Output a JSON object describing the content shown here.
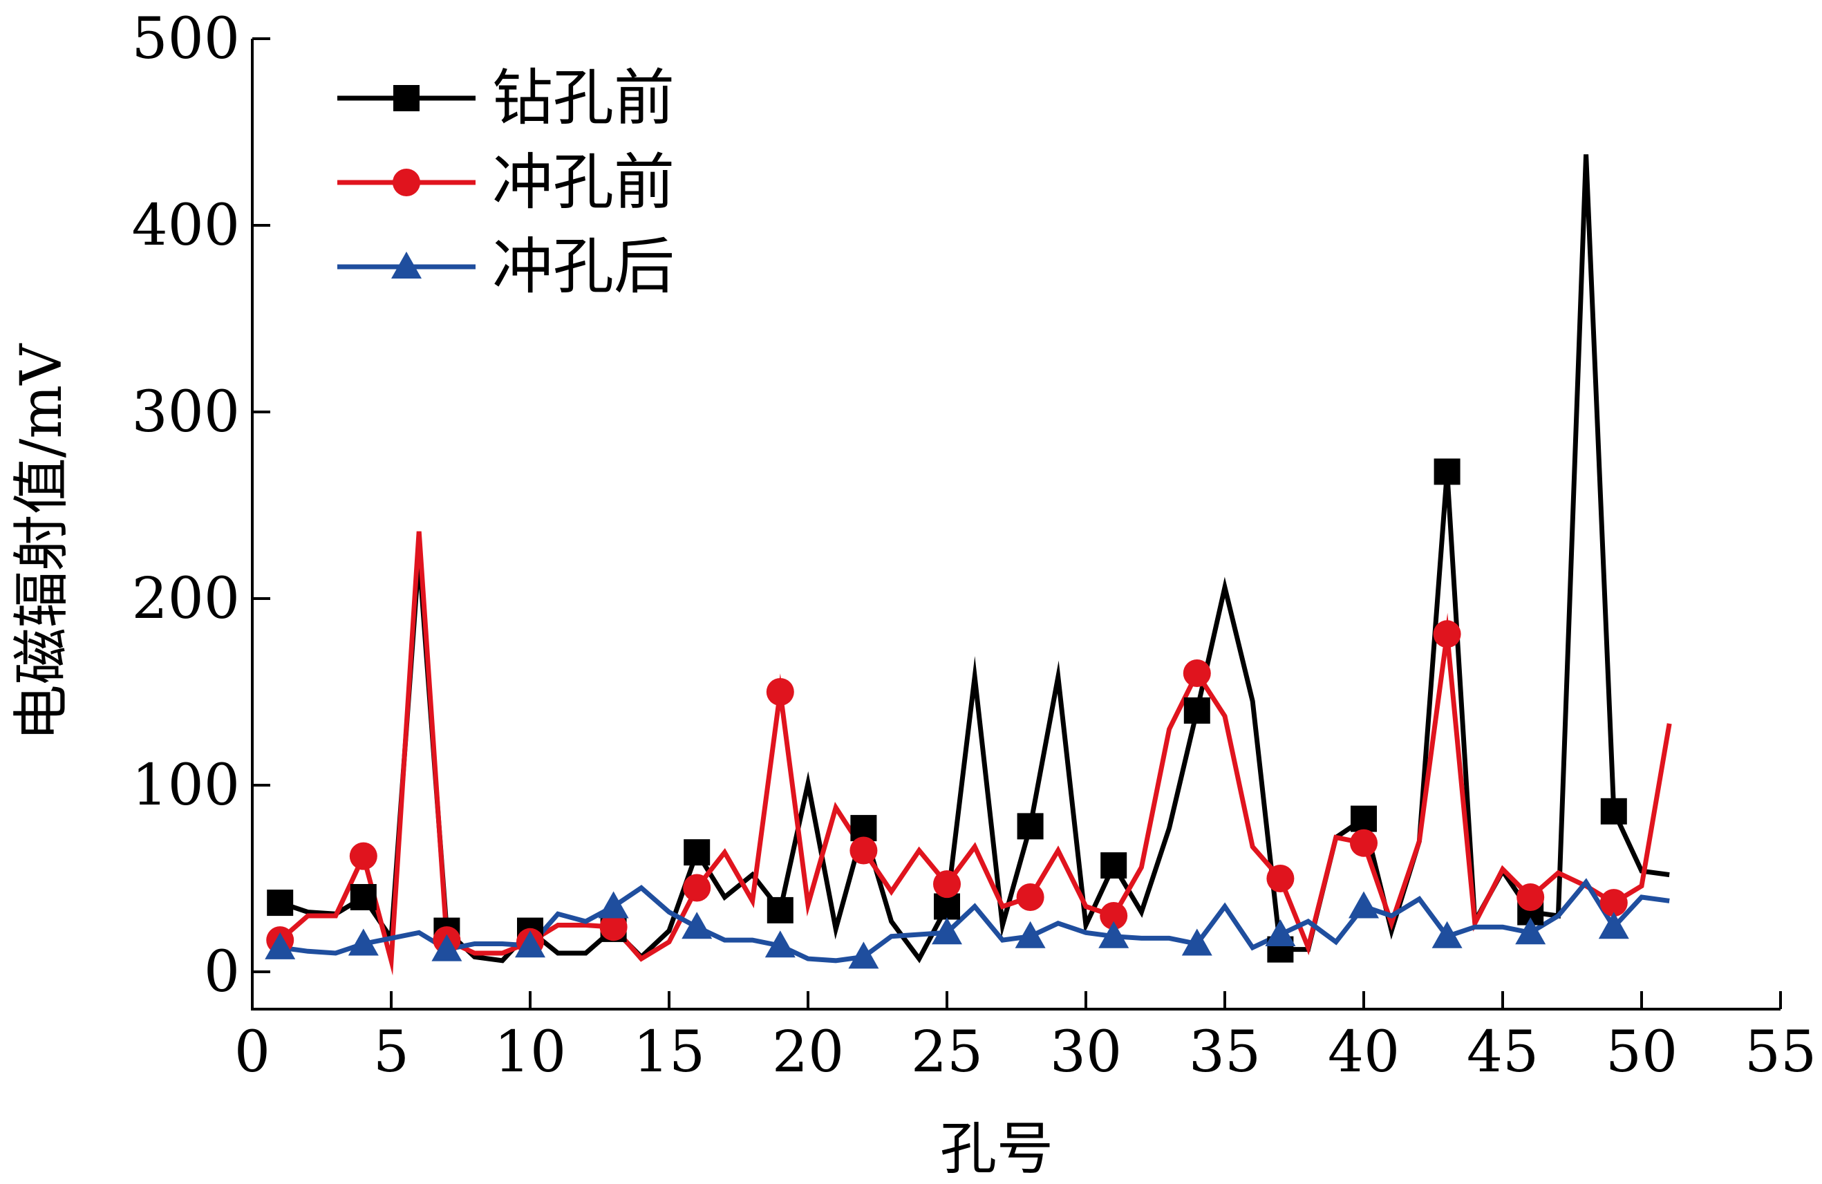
{
  "chart_data": {
    "type": "line",
    "xlabel": "孔号",
    "ylabel": "电磁辐射值/mV",
    "xlim": [
      0,
      55
    ],
    "ylim": [
      -20,
      500
    ],
    "x_ticks": [
      0,
      5,
      10,
      15,
      20,
      25,
      30,
      35,
      40,
      45,
      50,
      55
    ],
    "y_ticks": [
      0,
      100,
      200,
      300,
      400,
      500
    ],
    "x_tick_labels": [
      "0",
      "5",
      "10",
      "15",
      "20",
      "25",
      "30",
      "35",
      "40",
      "45",
      "50",
      "55"
    ],
    "y_tick_labels": [
      "0",
      "100",
      "200",
      "300",
      "400",
      "500"
    ],
    "grid": false,
    "legend_position": "top-left",
    "x": [
      1,
      2,
      3,
      4,
      5,
      6,
      7,
      8,
      9,
      10,
      11,
      12,
      13,
      14,
      15,
      16,
      17,
      18,
      19,
      20,
      21,
      22,
      23,
      24,
      25,
      26,
      27,
      28,
      29,
      30,
      31,
      32,
      33,
      34,
      35,
      36,
      37,
      38,
      39,
      40,
      41,
      42,
      43,
      44,
      45,
      46,
      47,
      48,
      49,
      50,
      51
    ],
    "series": [
      {
        "name": "钻孔前",
        "color": "#000000",
        "marker": "square",
        "marker_every": 3,
        "values": [
          37,
          32,
          31,
          40,
          18,
          223,
          22,
          8,
          6,
          22,
          10,
          10,
          23,
          8,
          22,
          64,
          40,
          52,
          33,
          101,
          23,
          77,
          27,
          7,
          35,
          158,
          25,
          78,
          158,
          25,
          57,
          32,
          77,
          140,
          206,
          145,
          12,
          12,
          72,
          82,
          22,
          70,
          268,
          27,
          54,
          32,
          30,
          438,
          86,
          54,
          52
        ]
      },
      {
        "name": "冲孔前",
        "color": "#e0141e",
        "marker": "circle",
        "marker_every": 3,
        "values": [
          17,
          30,
          30,
          62,
          6,
          236,
          17,
          10,
          10,
          16,
          25,
          25,
          24,
          7,
          16,
          45,
          64,
          38,
          150,
          36,
          88,
          65,
          43,
          65,
          47,
          67,
          35,
          40,
          65,
          35,
          30,
          56,
          130,
          160,
          137,
          67,
          50,
          13,
          72,
          69,
          26,
          70,
          181,
          26,
          55,
          40,
          53,
          46,
          37,
          46,
          133
        ]
      },
      {
        "name": "冲孔后",
        "color": "#1f4e9e",
        "marker": "triangle",
        "marker_every": 3,
        "values": [
          13,
          11,
          10,
          15,
          18,
          21,
          12,
          15,
          15,
          14,
          31,
          27,
          35,
          45,
          32,
          24,
          17,
          17,
          14,
          7,
          6,
          8,
          19,
          20,
          21,
          35,
          17,
          19,
          26,
          21,
          19,
          18,
          18,
          15,
          35,
          13,
          20,
          27,
          16,
          35,
          30,
          39,
          19,
          24,
          24,
          21,
          30,
          48,
          24,
          40,
          38
        ]
      }
    ]
  }
}
